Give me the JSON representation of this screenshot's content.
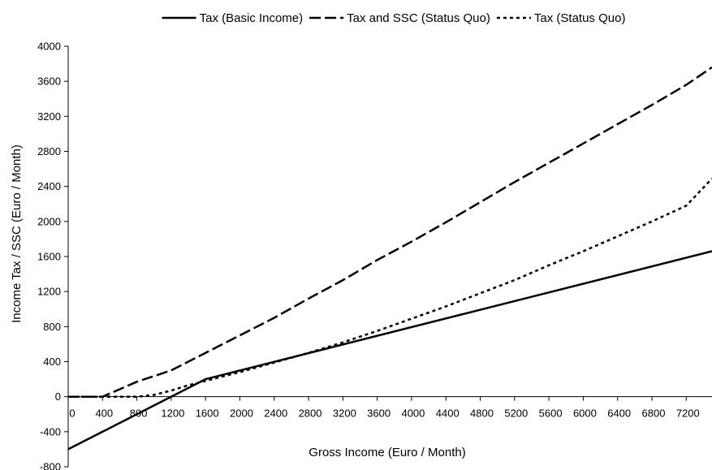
{
  "chart_data": {
    "type": "line",
    "title": "",
    "xlabel": "Gross Income (Euro / Month)",
    "ylabel": "Income Tax / SSC (Euro / Month)",
    "xlim": [
      0,
      7500
    ],
    "ylim": [
      -800,
      4000
    ],
    "x_ticks": [
      "0",
      "400",
      "800",
      "1200",
      "1600",
      "2000",
      "2400",
      "2800",
      "3200",
      "3600",
      "4000",
      "4400",
      "4800",
      "5200",
      "5600",
      "6000",
      "6400",
      "6800",
      "7200"
    ],
    "y_ticks": [
      "-800",
      "-400",
      "0",
      "400",
      "800",
      "1200",
      "1600",
      "2000",
      "2400",
      "2800",
      "3200",
      "3600",
      "4000"
    ],
    "legend_position": "top",
    "series": [
      {
        "name": "Tax (Basic Income)",
        "style": "solid",
        "x": [
          0,
          1600,
          7500
        ],
        "y": [
          -600,
          200,
          1660
        ]
      },
      {
        "name": "Tax and SSC (Status Quo)",
        "style": "dashed",
        "x": [
          0,
          400,
          800,
          1200,
          1600,
          2000,
          2400,
          2800,
          3200,
          3600,
          4000,
          4400,
          4800,
          5200,
          5600,
          6000,
          6400,
          6800,
          7200,
          7500
        ],
        "y": [
          0,
          0,
          170,
          300,
          500,
          700,
          900,
          1120,
          1330,
          1560,
          1770,
          1990,
          2220,
          2450,
          2670,
          2890,
          3110,
          3330,
          3560,
          3760
        ]
      },
      {
        "name": "Tax (Status Quo)",
        "style": "dotted",
        "x": [
          0,
          800,
          1000,
          1200,
          1400,
          1600,
          2000,
          2400,
          2800,
          3200,
          3600,
          4000,
          4400,
          4800,
          5200,
          5600,
          6000,
          6400,
          6800,
          7200,
          7500
        ],
        "y": [
          0,
          0,
          20,
          70,
          130,
          180,
          280,
          390,
          500,
          620,
          750,
          890,
          1030,
          1180,
          1330,
          1500,
          1660,
          1830,
          2000,
          2180,
          2490
        ]
      }
    ]
  }
}
